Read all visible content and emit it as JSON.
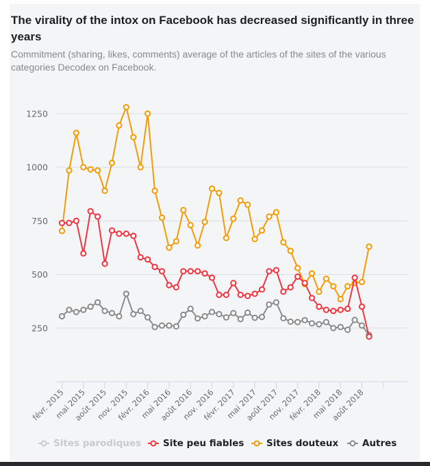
{
  "header": {
    "title": "The virality of the intox on Facebook has decreased significantly in three years",
    "subtitle": "Commitment (sharing, likes, comments) average of the articles of the sites of the various categories Decodex on Facebook."
  },
  "chart_data": {
    "type": "line",
    "title": "The virality of the intox on Facebook has decreased significantly in three years",
    "subtitle": "Commitment (sharing, likes, comments) average of the articles of the sites of the various categories Decodex on Facebook.",
    "xlabel": "",
    "ylabel": "",
    "ylim": [
      0,
      1300
    ],
    "yticks": [
      250,
      500,
      750,
      1000,
      1250
    ],
    "grid": true,
    "legend_position": "bottom",
    "x": [
      "2015-02",
      "2015-03",
      "2015-04",
      "2015-05",
      "2015-06",
      "2015-07",
      "2015-08",
      "2015-09",
      "2015-10",
      "2015-11",
      "2015-12",
      "2016-01",
      "2016-02",
      "2016-03",
      "2016-04",
      "2016-05",
      "2016-06",
      "2016-07",
      "2016-08",
      "2016-09",
      "2016-10",
      "2016-11",
      "2016-12",
      "2017-01",
      "2017-02",
      "2017-03",
      "2017-04",
      "2017-05",
      "2017-06",
      "2017-07",
      "2017-08",
      "2017-09",
      "2017-10",
      "2017-11",
      "2017-12",
      "2018-01",
      "2018-02",
      "2018-03",
      "2018-04",
      "2018-05",
      "2018-06",
      "2018-07",
      "2018-08",
      "2018-09"
    ],
    "xtick_labels": [
      "févr. 2015",
      "mai 2015",
      "août 2015",
      "nov. 2015",
      "févr. 2016",
      "mai 2016",
      "août 2016",
      "nov. 2016",
      "févr. 2017",
      "mai 2017",
      "août 2017",
      "nov. 2017",
      "févr. 2018",
      "mai 2018",
      "août 2018",
      ""
    ],
    "series": [
      {
        "name": "Sites parodiques",
        "color": "#c9cacd",
        "visible": false,
        "values": []
      },
      {
        "name": "Site peu fiables",
        "color": "#f5333f",
        "visible": true,
        "values": [
          740,
          740,
          750,
          598,
          795,
          770,
          550,
          705,
          690,
          690,
          680,
          580,
          570,
          535,
          515,
          450,
          440,
          515,
          515,
          515,
          505,
          485,
          405,
          405,
          460,
          405,
          400,
          410,
          430,
          515,
          520,
          420,
          440,
          490,
          460,
          390,
          350,
          335,
          330,
          335,
          340,
          485,
          350,
          210
        ]
      },
      {
        "name": "Sites douteux",
        "color": "#f59a00",
        "visible": true,
        "values": [
          703,
          985,
          1160,
          1000,
          990,
          985,
          890,
          1020,
          1195,
          1280,
          1140,
          1000,
          1250,
          890,
          765,
          625,
          655,
          800,
          730,
          635,
          745,
          900,
          880,
          670,
          760,
          845,
          825,
          665,
          705,
          770,
          790,
          650,
          610,
          530,
          455,
          505,
          420,
          480,
          445,
          385,
          445,
          460,
          465,
          630
        ]
      },
      {
        "name": "Autres",
        "color": "#8a8a8a",
        "visible": true,
        "values": [
          305,
          335,
          325,
          335,
          350,
          370,
          330,
          320,
          305,
          410,
          315,
          330,
          300,
          255,
          262,
          262,
          258,
          312,
          340,
          295,
          305,
          325,
          315,
          300,
          320,
          292,
          322,
          298,
          302,
          360,
          370,
          296,
          280,
          278,
          287,
          272,
          268,
          278,
          250,
          255,
          242,
          288,
          262,
          218
        ]
      }
    ]
  },
  "legend": {
    "items": [
      {
        "label": "Sites parodiques",
        "color": "#c9cacd"
      },
      {
        "label": "Site peu fiables",
        "color": "#f5333f"
      },
      {
        "label": "Sites douteux",
        "color": "#f59a00"
      },
      {
        "label": "Autres",
        "color": "#8a8a8a"
      }
    ]
  }
}
